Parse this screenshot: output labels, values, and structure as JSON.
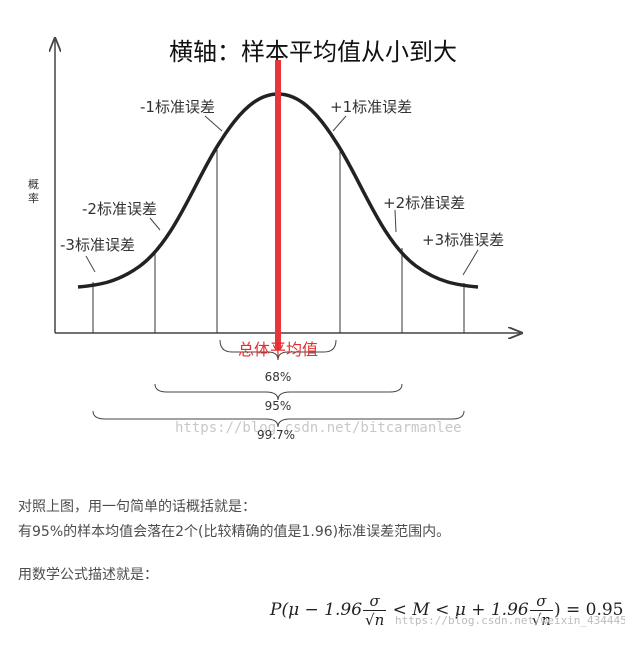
{
  "title": "横轴：样本平均值从小到大",
  "ylabel": "概率",
  "sd_labels": {
    "minus1": "-1标准误差",
    "plus1": "+1标准误差",
    "minus2": "-2标准误差",
    "plus2": "+2标准误差",
    "minus3": "-3标准误差",
    "plus3": "+3标准误差"
  },
  "mean_label": "总体平均值",
  "ranges": [
    "68%",
    "95%",
    "99.7%"
  ],
  "watermark_diagram": "https://blog.csdn.net/bitcarmanlee",
  "text": {
    "line1": "对照上图，用一句简单的话概括就是：",
    "line2": "有95%的样本均值会落在2个(比较精确的值是1.96)标准误差范围内。",
    "line3": "用数学公式描述就是："
  },
  "formula": {
    "prefix": "P(μ − 1.96",
    "sigma": "σ",
    "sqrt_n": "√n",
    "middle": " < M < μ + 1.96",
    "suffix": ") = 0.95"
  },
  "watermark_bottom": "https://blog.csdn.net/weixin_43444514",
  "colors": {
    "curve": "#222222",
    "mean_line": "#e8343b",
    "mean_label": "#e03030",
    "text": "#4d4d4d"
  }
}
